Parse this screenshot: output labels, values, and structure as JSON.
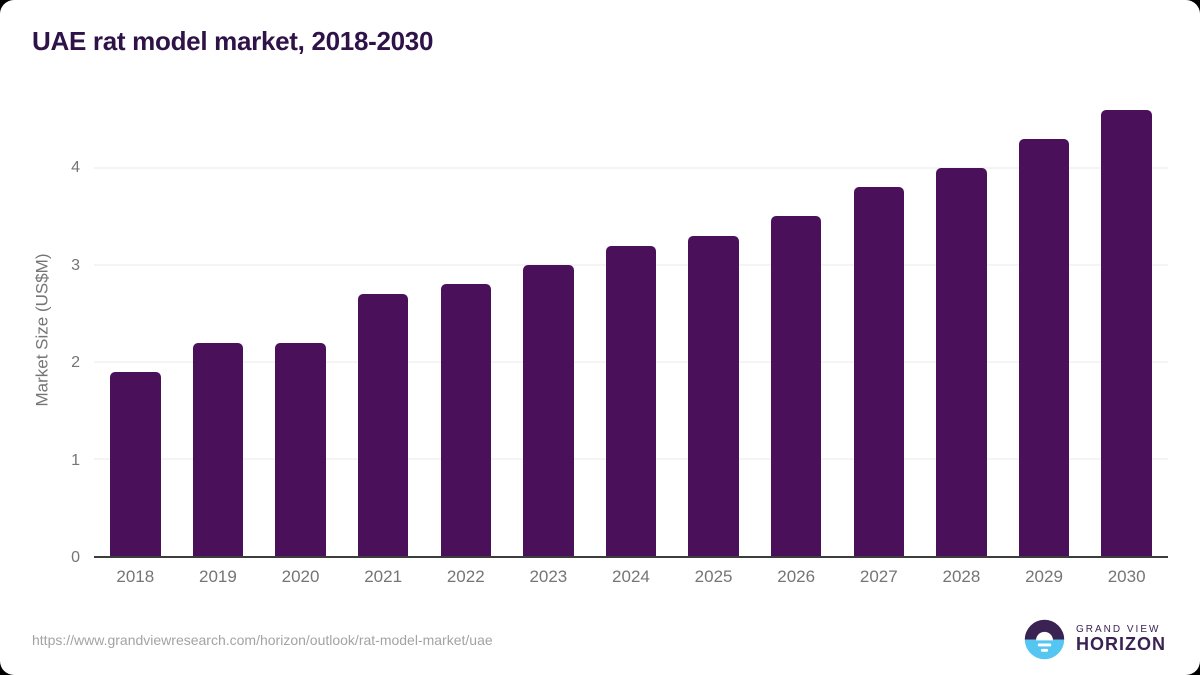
{
  "title": "UAE rat model market, 2018-2030",
  "source_url": "https://www.grandviewresearch.com/horizon/outlook/rat-model-market/uae",
  "logo": {
    "top_text": "GRAND VIEW",
    "bottom_text": "HORIZON"
  },
  "colors": {
    "bar": "#4A115A",
    "title_text": "#2E1248",
    "axis_text": "#757575",
    "gridline": "#E8E8E8",
    "axis_line": "#3D3D3D",
    "url_text": "#A3A3A3",
    "logo_purple": "#3A2353",
    "logo_blue": "#55C6F2"
  },
  "chart_data": {
    "type": "bar",
    "title": "UAE rat model market, 2018-2030",
    "categories": [
      "2018",
      "2019",
      "2020",
      "2021",
      "2022",
      "2023",
      "2024",
      "2025",
      "2026",
      "2027",
      "2028",
      "2029",
      "2030"
    ],
    "values": [
      1.9,
      2.2,
      2.2,
      2.7,
      2.8,
      3.0,
      3.2,
      3.3,
      3.5,
      3.8,
      4.0,
      4.3,
      4.6
    ],
    "xlabel": "",
    "ylabel": "Market Size (US$M)",
    "ylim": [
      0,
      4.7
    ],
    "yticks": [
      0,
      1,
      2,
      3,
      4
    ],
    "grid": true,
    "legend": false,
    "bar_color": "#4A115A"
  }
}
